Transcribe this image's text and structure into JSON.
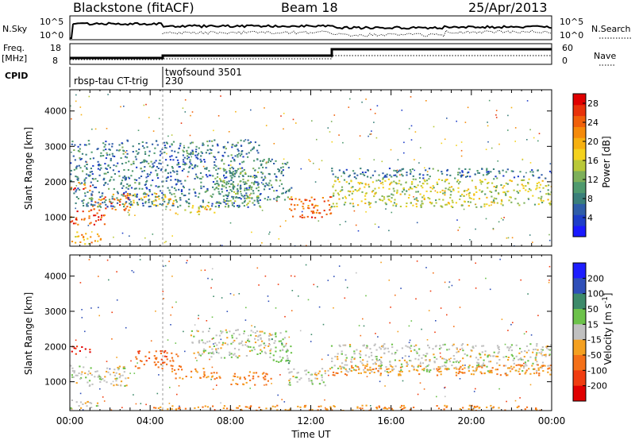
{
  "header": {
    "station": "Blackstone (fitACF)",
    "beam": "Beam 18",
    "date": "25/Apr/2013"
  },
  "status": {
    "nsky_label": "N.Sky",
    "nsky_ticks": [
      "10^5",
      "10^0"
    ],
    "nsearch_label": "N.Search",
    "freq_label": "Freq.",
    "freq_unit": "[MHz]",
    "freq_ticks": [
      "18",
      "8"
    ],
    "nave_label": "Nave",
    "nave_ticks": [
      "60",
      "0"
    ],
    "cpid_label": "CPID",
    "cpid_segments": [
      {
        "name": "rbsp-tau CT-trig",
        "start_hour": 0.0
      },
      {
        "name": "twofsound 3501",
        "start_hour": 4.75
      },
      {
        "name": "230",
        "start_hour": 4.75
      }
    ]
  },
  "chart_data": [
    {
      "type": "heatmap",
      "name": "power",
      "xlabel": "Time UT",
      "ylabel": "Slant Range [km]",
      "x_ticks": [
        "00:00",
        "04:00",
        "08:00",
        "12:00",
        "16:00",
        "20:00",
        "00:00"
      ],
      "y_ticks": [
        "1000",
        "2000",
        "3000",
        "4000"
      ],
      "xlim_hours": [
        0,
        24
      ],
      "ylim_km": [
        180,
        4600
      ],
      "colorbar": {
        "label": "Power [dB]",
        "ticks": [
          "4",
          "8",
          "12",
          "16",
          "20",
          "24",
          "28"
        ],
        "range": [
          0,
          30
        ],
        "colors": [
          "#1a1aff",
          "#1e3ec8",
          "#2f5da8",
          "#3a7f7a",
          "#4f9a6e",
          "#7db05a",
          "#b9c838",
          "#f4d21e",
          "#f6b010",
          "#f58a0a",
          "#f0600a",
          "#e8320a",
          "#e00000"
        ]
      },
      "regions": [
        {
          "t0": 0.0,
          "t1": 1.8,
          "r0": 800,
          "r1": 1200,
          "level": 27
        },
        {
          "t0": 1.0,
          "t1": 3.0,
          "r0": 1200,
          "r1": 1700,
          "level": 25
        },
        {
          "t0": 0.0,
          "t1": 1.0,
          "r0": 1750,
          "r1": 2000,
          "level": 26
        },
        {
          "t0": 2.8,
          "t1": 5.5,
          "r0": 1350,
          "r1": 1700,
          "level": 18
        },
        {
          "t0": 5.2,
          "t1": 7.2,
          "r0": 1100,
          "r1": 1350,
          "level": 19
        },
        {
          "t0": 0.0,
          "t1": 9.5,
          "r0": 1300,
          "r1": 3200,
          "level": 7
        },
        {
          "t0": 7.2,
          "t1": 9.5,
          "r0": 1300,
          "r1": 2400,
          "level": 11
        },
        {
          "t0": 9.5,
          "t1": 11.0,
          "r0": 1500,
          "r1": 2700,
          "level": 8
        },
        {
          "t0": 10.8,
          "t1": 13.0,
          "r0": 1000,
          "r1": 1600,
          "level": 25
        },
        {
          "t0": 0.0,
          "t1": 1.5,
          "r0": 250,
          "r1": 600,
          "level": 20
        },
        {
          "t0": 13.0,
          "t1": 24.0,
          "r0": 1300,
          "r1": 2100,
          "level": 15
        },
        {
          "t0": 13.0,
          "t1": 24.0,
          "r0": 2100,
          "r1": 2400,
          "level": 7
        }
      ]
    },
    {
      "type": "heatmap",
      "name": "velocity",
      "xlabel": "Time UT",
      "ylabel": "Slant Range [km]",
      "x_ticks": [
        "00:00",
        "04:00",
        "08:00",
        "12:00",
        "16:00",
        "20:00",
        "00:00"
      ],
      "y_ticks": [
        "1000",
        "2000",
        "3000",
        "4000"
      ],
      "xlim_hours": [
        0,
        24
      ],
      "ylim_km": [
        180,
        4600
      ],
      "colorbar": {
        "label": "Velocity [m s^-1]",
        "ticks": [
          "200",
          "100",
          "50",
          "15",
          "-15",
          "-50",
          "-100",
          "-200"
        ],
        "colors": [
          "#1e1eff",
          "#2f4fb8",
          "#3d8a6a",
          "#6cc24a",
          "#c0c0c0",
          "#f4a020",
          "#f47018",
          "#f03c10",
          "#e00000"
        ]
      },
      "regions": [
        {
          "t0": 0.0,
          "t1": 1.0,
          "r0": 1800,
          "r1": 2050,
          "vel": -200
        },
        {
          "t0": 0.0,
          "t1": 3.0,
          "r0": 900,
          "r1": 1500,
          "vel": 0
        },
        {
          "t0": 3.2,
          "t1": 5.5,
          "r0": 1400,
          "r1": 1900,
          "vel": -90
        },
        {
          "t0": 5.0,
          "t1": 7.5,
          "r0": 1100,
          "r1": 1400,
          "vel": -50
        },
        {
          "t0": 6.0,
          "t1": 10.0,
          "r0": 1700,
          "r1": 2500,
          "vel": 0
        },
        {
          "t0": 8.0,
          "t1": 10.0,
          "r0": 900,
          "r1": 1300,
          "vel": -60
        },
        {
          "t0": 10.0,
          "t1": 11.0,
          "r0": 1500,
          "r1": 2500,
          "vel": 30
        },
        {
          "t0": 10.8,
          "t1": 13.0,
          "r0": 900,
          "r1": 1400,
          "vel": 0
        },
        {
          "t0": 0.0,
          "t1": 1.5,
          "r0": 200,
          "r1": 500,
          "vel": 0
        },
        {
          "t0": 13.0,
          "t1": 24.0,
          "r0": 1300,
          "r1": 2100,
          "vel": 0
        },
        {
          "t0": 13.0,
          "t1": 24.0,
          "r0": 1200,
          "r1": 1500,
          "vel": -50
        },
        {
          "t0": 4.0,
          "t1": 24.0,
          "r0": 200,
          "r1": 350,
          "vel": -50
        }
      ]
    }
  ]
}
